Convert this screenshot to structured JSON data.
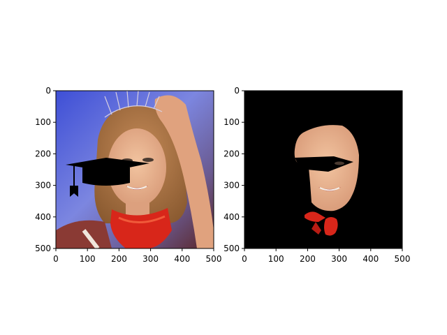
{
  "chart_data": [
    {
      "type": "image",
      "title": "",
      "xlabel": "",
      "ylabel": "",
      "xlim": [
        0,
        500
      ],
      "ylim": [
        500,
        0
      ],
      "x_ticks": [
        "0",
        "100",
        "200",
        "300",
        "400",
        "500"
      ],
      "y_ticks": [
        "0",
        "100",
        "200",
        "300",
        "400",
        "500"
      ],
      "content": "photo of a woman wearing a tiara with a black graduation cap (mortarboard) overlay",
      "colors": {
        "background_top": "#4a5ad8",
        "background_bottom": "#7a2a2a",
        "cap": "#000000",
        "scarf": "#d8261a",
        "hair": "#a66a3a",
        "skin": "#e8b08a"
      }
    },
    {
      "type": "image",
      "title": "",
      "xlabel": "",
      "ylabel": "",
      "xlim": [
        0,
        500
      ],
      "ylim": [
        500,
        0
      ],
      "x_ticks": [
        "0",
        "100",
        "200",
        "300",
        "400",
        "500"
      ],
      "y_ticks": [
        "0",
        "100",
        "200",
        "300",
        "400",
        "500"
      ],
      "content": "segmentation mask on black background showing only face and red scarf regions",
      "colors": {
        "background": "#000000",
        "skin": "#e8b08a",
        "scarf": "#d8261a"
      }
    }
  ]
}
